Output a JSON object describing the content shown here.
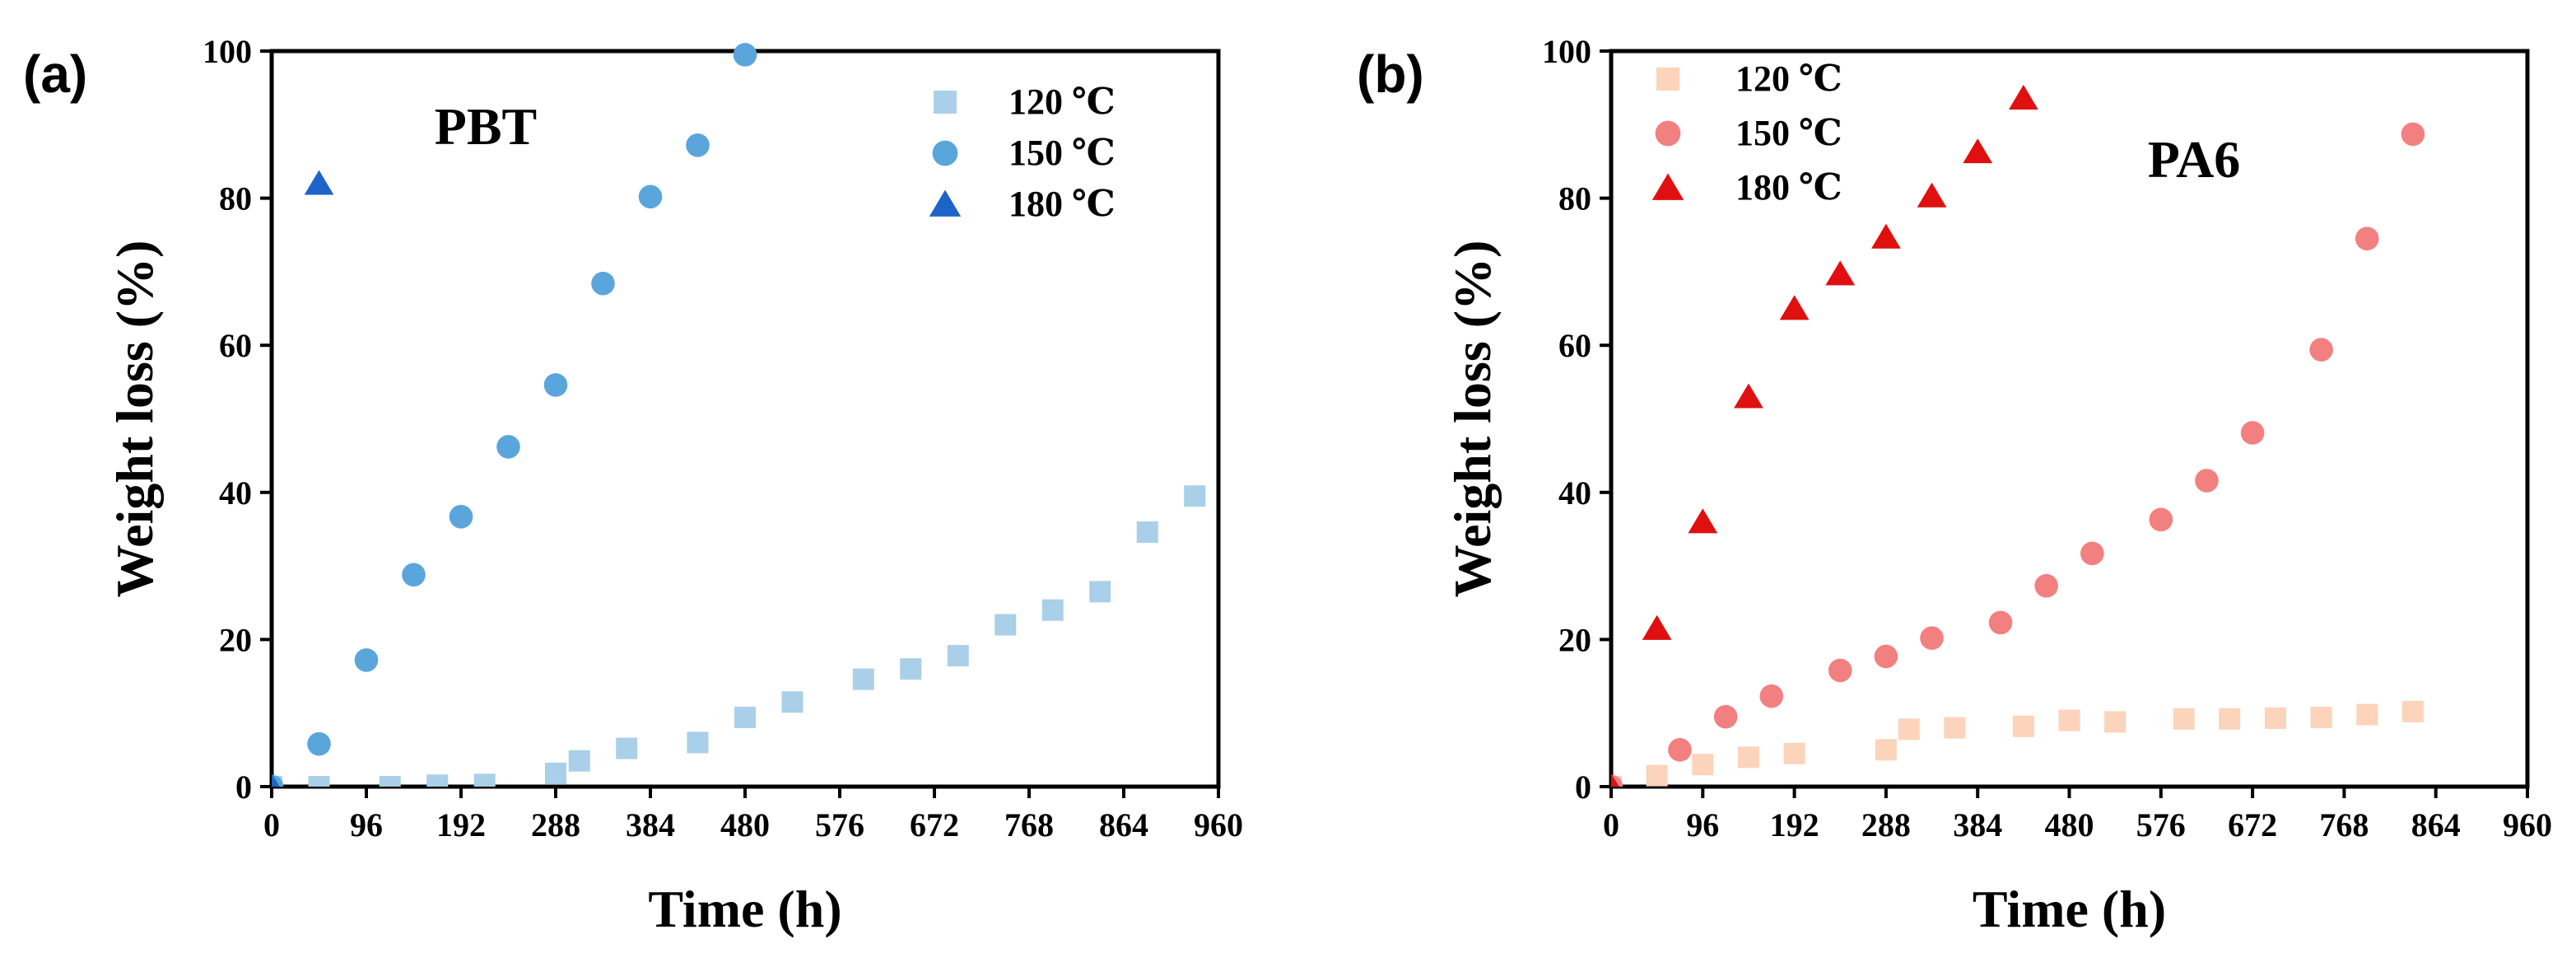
{
  "chart_data": [
    {
      "type": "scatter",
      "panel_label": "(a)",
      "title": "PBT",
      "xlabel": "Time (h)",
      "ylabel": "Weight loss (%)",
      "xlim": [
        0,
        960
      ],
      "ylim": [
        0,
        100
      ],
      "x_ticks": [
        0,
        96,
        192,
        288,
        384,
        480,
        576,
        672,
        768,
        864,
        960
      ],
      "y_ticks": [
        0,
        20,
        40,
        60,
        80,
        100
      ],
      "legend_position": "top-right",
      "series": [
        {
          "name": "120 ℃",
          "marker": "square",
          "color": "#a9d0e8",
          "points": [
            [
              0,
              0
            ],
            [
              48,
              0
            ],
            [
              120,
              0
            ],
            [
              168,
              0.2
            ],
            [
              216,
              0.3
            ],
            [
              288,
              1.8
            ],
            [
              312,
              3.5
            ],
            [
              360,
              5.2
            ],
            [
              432,
              6
            ],
            [
              480,
              9.4
            ],
            [
              528,
              11.5
            ],
            [
              600,
              14.6
            ],
            [
              648,
              16
            ],
            [
              696,
              17.8
            ],
            [
              744,
              22
            ],
            [
              792,
              24
            ],
            [
              840,
              26.5
            ],
            [
              888,
              34.6
            ],
            [
              936,
              39.5
            ]
          ]
        },
        {
          "name": "150 ℃",
          "marker": "circle",
          "color": "#5aa5dc",
          "points": [
            [
              0,
              0
            ],
            [
              48,
              5.8
            ],
            [
              96,
              17.2
            ],
            [
              144,
              28.8
            ],
            [
              192,
              36.7
            ],
            [
              240,
              46.2
            ],
            [
              288,
              54.6
            ],
            [
              336,
              68.4
            ],
            [
              384,
              80.2
            ],
            [
              432,
              87.2
            ],
            [
              480,
              99.5
            ]
          ]
        },
        {
          "name": "180 ℃",
          "marker": "triangle",
          "color": "#1e64c8",
          "points": [
            [
              0,
              0
            ],
            [
              48,
              82
            ]
          ]
        }
      ]
    },
    {
      "type": "scatter",
      "panel_label": "(b)",
      "title": "PA6",
      "xlabel": "Time (h)",
      "ylabel": "Weight loss (%)",
      "xlim": [
        0,
        960
      ],
      "ylim": [
        0,
        100
      ],
      "x_ticks": [
        0,
        96,
        192,
        288,
        384,
        480,
        576,
        672,
        768,
        864,
        960
      ],
      "y_ticks": [
        0,
        20,
        40,
        60,
        80,
        100
      ],
      "legend_position": "top-left",
      "series": [
        {
          "name": "120 ℃",
          "marker": "square",
          "color": "#fcd3bb",
          "points": [
            [
              0,
              0
            ],
            [
              48,
              1.5
            ],
            [
              96,
              3
            ],
            [
              144,
              4
            ],
            [
              192,
              4.5
            ],
            [
              288,
              5
            ],
            [
              312,
              7.8
            ],
            [
              360,
              8
            ],
            [
              432,
              8.2
            ],
            [
              480,
              9
            ],
            [
              528,
              8.8
            ],
            [
              600,
              9.2
            ],
            [
              648,
              9.2
            ],
            [
              696,
              9.3
            ],
            [
              744,
              9.4
            ],
            [
              792,
              9.8
            ],
            [
              840,
              10.2
            ]
          ]
        },
        {
          "name": "150 ℃",
          "marker": "circle",
          "color": "#f28080",
          "points": [
            [
              0,
              0
            ],
            [
              72,
              5
            ],
            [
              120,
              9.5
            ],
            [
              168,
              12.3
            ],
            [
              240,
              15.8
            ],
            [
              288,
              17.7
            ],
            [
              336,
              20.2
            ],
            [
              408,
              22.3
            ],
            [
              456,
              27.3
            ],
            [
              504,
              31.7
            ],
            [
              576,
              36.3
            ],
            [
              624,
              41.6
            ],
            [
              672,
              48.1
            ],
            [
              744,
              59.4
            ],
            [
              792,
              74.5
            ],
            [
              840,
              88.7
            ]
          ]
        },
        {
          "name": "180 ℃",
          "marker": "triangle",
          "color": "#e01010",
          "points": [
            [
              0,
              0
            ],
            [
              48,
              21.5
            ],
            [
              96,
              36
            ],
            [
              144,
              53
            ],
            [
              192,
              65
            ],
            [
              240,
              69.7
            ],
            [
              288,
              74.7
            ],
            [
              336,
              80.3
            ],
            [
              384,
              86.3
            ],
            [
              432,
              93.6
            ]
          ]
        }
      ]
    }
  ]
}
